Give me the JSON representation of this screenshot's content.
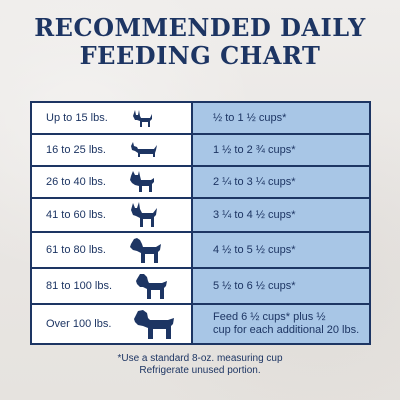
{
  "title": {
    "line1": "RECOMMENDED DAILY",
    "line2": "FEEDING CHART"
  },
  "rows": [
    {
      "weight": "Up to 15 lbs.",
      "amount": "½ to 1 ½ cups*",
      "dog_icon": "small-terrier-icon"
    },
    {
      "weight": "16 to 25 lbs.",
      "amount": "1 ½ to 2 ¾ cups*",
      "dog_icon": "dachshund-icon"
    },
    {
      "weight": "26 to 40 lbs.",
      "amount": "2 ¼ to 3 ¼ cups*",
      "dog_icon": "bulldog-icon"
    },
    {
      "weight": "41 to 60 lbs.",
      "amount": "3 ¼ to 4 ½ cups*",
      "dog_icon": "boxer-icon"
    },
    {
      "weight": "61 to 80 lbs.",
      "amount": "4 ½ to 5 ½ cups*",
      "dog_icon": "rottweiler-icon"
    },
    {
      "weight": "81 to 100 lbs.",
      "amount": "5 ½ to 6 ½ cups*",
      "dog_icon": "large-retriever-icon"
    },
    {
      "weight": "Over 100 lbs.",
      "amount": "Feed 6 ½ cups* plus ½\ncup for each additional 20 lbs.",
      "dog_icon": "mastiff-icon"
    }
  ],
  "footnote": {
    "line1": "*Use a standard 8-oz. measuring cup",
    "line2": "Refrigerate unused portion."
  },
  "colors": {
    "navy": "#1d3563",
    "light_blue": "#a8c6e6",
    "background": "#ebe8e5"
  }
}
